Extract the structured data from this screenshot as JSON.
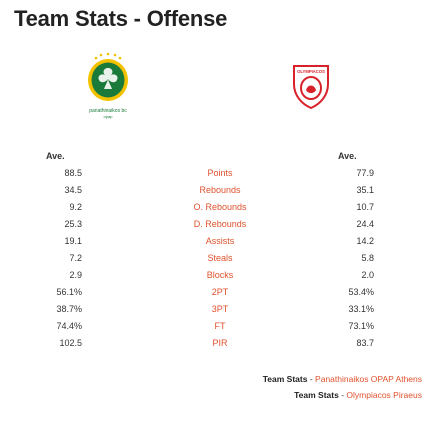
{
  "page": {
    "title": "Team Stats - Offense"
  },
  "teams": {
    "left": {
      "logo_text": "panathinaikos bc",
      "logo_sub": "opap",
      "logo_icon": "shamrock-crest"
    },
    "right": {
      "logo_text": "OLYMPIACOS",
      "logo_icon": "olympiacos-crest"
    }
  },
  "table": {
    "left_header": "Ave.",
    "right_header": "Ave.",
    "rows": [
      {
        "label": "Points",
        "left": "88.5",
        "right": "77.9"
      },
      {
        "label": "Rebounds",
        "left": "34.5",
        "right": "35.1"
      },
      {
        "label": "O. Rebounds",
        "left": "9.2",
        "right": "10.7"
      },
      {
        "label": "D. Rebounds",
        "left": "25.3",
        "right": "24.4"
      },
      {
        "label": "Assists",
        "left": "19.1",
        "right": "14.2"
      },
      {
        "label": "Steals",
        "left": "7.2",
        "right": "5.8"
      },
      {
        "label": "Blocks",
        "left": "2.9",
        "right": "2.0"
      },
      {
        "label": "2PT",
        "left": "56.1%",
        "right": "53.4%"
      },
      {
        "label": "3PT",
        "left": "38.7%",
        "right": "33.1%"
      },
      {
        "label": "FT",
        "left": "74.4%",
        "right": "73.1%"
      },
      {
        "label": "PIR",
        "left": "102.5",
        "right": "83.7"
      }
    ]
  },
  "footer": {
    "link1_bold": "Team Stats",
    "link1_sep": " - ",
    "link1_text": "Panathinaikos OPAP Athens",
    "link2_bold": "Team Stats",
    "link2_sep": " - ",
    "link2_text": "Olympiacos Piraeus"
  },
  "colors": {
    "accent": "#e0522d",
    "pao_green": "#1a7a3a",
    "oly_red": "#d8222a"
  }
}
